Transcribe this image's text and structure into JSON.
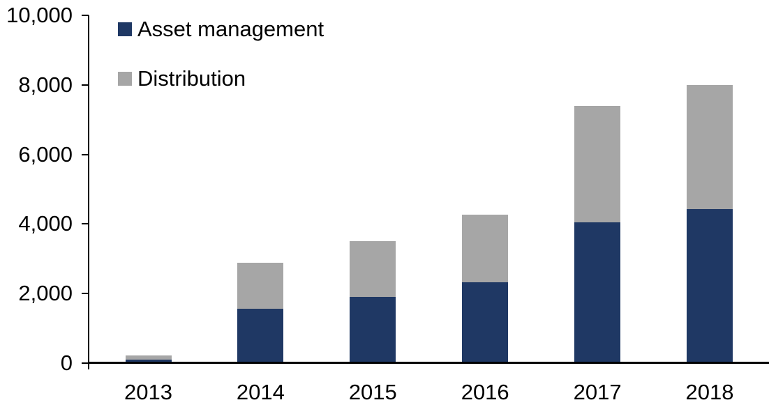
{
  "chart_data": {
    "type": "bar",
    "stacked": true,
    "title": "",
    "xlabel": "",
    "ylabel": "",
    "categories": [
      "2013",
      "2014",
      "2015",
      "2016",
      "2017",
      "2018"
    ],
    "series": [
      {
        "name": "Asset management",
        "color": "#1F3864",
        "values": [
          100,
          1560,
          1900,
          2330,
          4050,
          4430
        ]
      },
      {
        "name": "Distribution",
        "color": "#A6A6A6",
        "values": [
          120,
          1330,
          1600,
          1930,
          3350,
          3570
        ]
      }
    ],
    "stack_totals": [
      220,
      2890,
      3500,
      4260,
      7400,
      8000
    ],
    "ylim": [
      0,
      10000
    ],
    "yticks": [
      0,
      2000,
      4000,
      6000,
      8000,
      10000
    ],
    "ytick_labels": [
      "0",
      "2,000",
      "4,000",
      "6,000",
      "8,000",
      "10,000"
    ],
    "grid": false,
    "legend_position": "top-left"
  },
  "colors": {
    "axis": "#000000",
    "background": "#FFFFFF",
    "text": "#000000"
  }
}
